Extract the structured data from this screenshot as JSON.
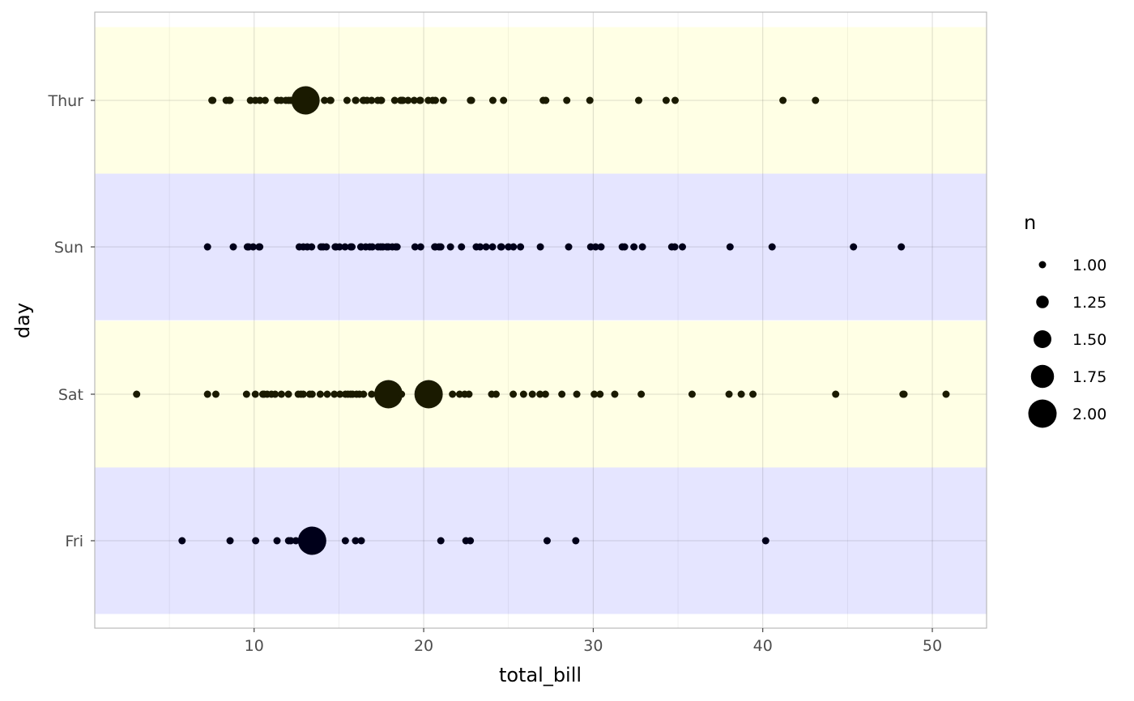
{
  "chart_data": {
    "type": "scatter",
    "xlabel": "total_bill",
    "ylabel": "day",
    "categories": [
      "Fri",
      "Sat",
      "Sun",
      "Thur"
    ],
    "xlim": [
      0.6,
      53.2
    ],
    "xticks": [
      10,
      20,
      30,
      40,
      50
    ],
    "grid": true,
    "legend": {
      "title": "n",
      "position": "right",
      "entries": [
        "1.00",
        "1.25",
        "1.50",
        "1.75",
        "2.00"
      ]
    },
    "band_colors": {
      "Thur": "#ffffe5",
      "Sun": "#e5e5ff",
      "Sat": "#ffffe5",
      "Fri": "#e5e5ff"
    },
    "series": [
      {
        "day": "Thur",
        "color": "#1a1a00",
        "points": [
          {
            "x": 7.51,
            "n": 1
          },
          {
            "x": 7.56,
            "n": 1
          },
          {
            "x": 8.35,
            "n": 1
          },
          {
            "x": 8.52,
            "n": 1
          },
          {
            "x": 8.58,
            "n": 1
          },
          {
            "x": 9.78,
            "n": 1
          },
          {
            "x": 10.07,
            "n": 1
          },
          {
            "x": 10.34,
            "n": 1
          },
          {
            "x": 10.65,
            "n": 1
          },
          {
            "x": 11.38,
            "n": 1
          },
          {
            "x": 11.59,
            "n": 1
          },
          {
            "x": 11.87,
            "n": 1
          },
          {
            "x": 12.03,
            "n": 1
          },
          {
            "x": 12.16,
            "n": 1
          },
          {
            "x": 12.43,
            "n": 1
          },
          {
            "x": 12.48,
            "n": 1
          },
          {
            "x": 12.74,
            "n": 1
          },
          {
            "x": 13.03,
            "n": 2
          },
          {
            "x": 13.42,
            "n": 1
          },
          {
            "x": 13.51,
            "n": 1
          },
          {
            "x": 14.15,
            "n": 1
          },
          {
            "x": 14.48,
            "n": 1
          },
          {
            "x": 14.52,
            "n": 1
          },
          {
            "x": 15.48,
            "n": 1
          },
          {
            "x": 15.98,
            "n": 1
          },
          {
            "x": 16.0,
            "n": 1
          },
          {
            "x": 16.43,
            "n": 1
          },
          {
            "x": 16.47,
            "n": 1
          },
          {
            "x": 16.66,
            "n": 1
          },
          {
            "x": 16.93,
            "n": 1
          },
          {
            "x": 17.29,
            "n": 1
          },
          {
            "x": 17.47,
            "n": 1
          },
          {
            "x": 17.51,
            "n": 1
          },
          {
            "x": 18.29,
            "n": 1
          },
          {
            "x": 18.64,
            "n": 1
          },
          {
            "x": 18.71,
            "n": 1
          },
          {
            "x": 18.78,
            "n": 1
          },
          {
            "x": 19.08,
            "n": 1
          },
          {
            "x": 19.44,
            "n": 1
          },
          {
            "x": 19.77,
            "n": 1
          },
          {
            "x": 19.81,
            "n": 1
          },
          {
            "x": 20.27,
            "n": 1
          },
          {
            "x": 20.53,
            "n": 1
          },
          {
            "x": 20.69,
            "n": 1
          },
          {
            "x": 21.16,
            "n": 1
          },
          {
            "x": 22.76,
            "n": 1
          },
          {
            "x": 22.82,
            "n": 1
          },
          {
            "x": 24.08,
            "n": 1
          },
          {
            "x": 24.71,
            "n": 1
          },
          {
            "x": 27.05,
            "n": 1
          },
          {
            "x": 27.2,
            "n": 1
          },
          {
            "x": 28.44,
            "n": 1
          },
          {
            "x": 29.8,
            "n": 1
          },
          {
            "x": 32.68,
            "n": 1
          },
          {
            "x": 34.3,
            "n": 1
          },
          {
            "x": 34.83,
            "n": 1
          },
          {
            "x": 41.19,
            "n": 1
          },
          {
            "x": 43.11,
            "n": 1
          }
        ]
      },
      {
        "day": "Sun",
        "color": "#00001a",
        "points": [
          {
            "x": 7.25,
            "n": 1
          },
          {
            "x": 8.77,
            "n": 1
          },
          {
            "x": 9.6,
            "n": 1
          },
          {
            "x": 9.68,
            "n": 1
          },
          {
            "x": 9.94,
            "n": 1
          },
          {
            "x": 10.29,
            "n": 1
          },
          {
            "x": 10.33,
            "n": 1
          },
          {
            "x": 12.66,
            "n": 1
          },
          {
            "x": 12.9,
            "n": 1
          },
          {
            "x": 13.13,
            "n": 1
          },
          {
            "x": 13.39,
            "n": 1
          },
          {
            "x": 13.94,
            "n": 1
          },
          {
            "x": 14.07,
            "n": 1
          },
          {
            "x": 14.26,
            "n": 1
          },
          {
            "x": 14.78,
            "n": 1
          },
          {
            "x": 14.83,
            "n": 1
          },
          {
            "x": 15.04,
            "n": 1
          },
          {
            "x": 15.36,
            "n": 1
          },
          {
            "x": 15.69,
            "n": 1
          },
          {
            "x": 15.77,
            "n": 1
          },
          {
            "x": 16.29,
            "n": 1
          },
          {
            "x": 16.31,
            "n": 1
          },
          {
            "x": 16.58,
            "n": 1
          },
          {
            "x": 16.82,
            "n": 1
          },
          {
            "x": 16.97,
            "n": 1
          },
          {
            "x": 17.31,
            "n": 1
          },
          {
            "x": 17.46,
            "n": 1
          },
          {
            "x": 17.59,
            "n": 1
          },
          {
            "x": 17.82,
            "n": 1
          },
          {
            "x": 17.92,
            "n": 1
          },
          {
            "x": 18.15,
            "n": 1
          },
          {
            "x": 18.35,
            "n": 1
          },
          {
            "x": 18.43,
            "n": 1
          },
          {
            "x": 19.49,
            "n": 1
          },
          {
            "x": 19.82,
            "n": 1
          },
          {
            "x": 20.65,
            "n": 1
          },
          {
            "x": 20.69,
            "n": 1
          },
          {
            "x": 20.9,
            "n": 1
          },
          {
            "x": 21.01,
            "n": 1
          },
          {
            "x": 21.58,
            "n": 1
          },
          {
            "x": 22.23,
            "n": 1
          },
          {
            "x": 23.1,
            "n": 1
          },
          {
            "x": 23.33,
            "n": 1
          },
          {
            "x": 23.68,
            "n": 1
          },
          {
            "x": 24.06,
            "n": 1
          },
          {
            "x": 24.55,
            "n": 1
          },
          {
            "x": 24.59,
            "n": 1
          },
          {
            "x": 25.0,
            "n": 1
          },
          {
            "x": 25.29,
            "n": 1
          },
          {
            "x": 25.71,
            "n": 1
          },
          {
            "x": 26.88,
            "n": 1
          },
          {
            "x": 28.55,
            "n": 1
          },
          {
            "x": 29.85,
            "n": 1
          },
          {
            "x": 30.14,
            "n": 1
          },
          {
            "x": 30.46,
            "n": 1
          },
          {
            "x": 31.71,
            "n": 1
          },
          {
            "x": 31.85,
            "n": 1
          },
          {
            "x": 32.4,
            "n": 1
          },
          {
            "x": 32.9,
            "n": 1
          },
          {
            "x": 34.63,
            "n": 1
          },
          {
            "x": 34.81,
            "n": 1
          },
          {
            "x": 35.26,
            "n": 1
          },
          {
            "x": 38.07,
            "n": 1
          },
          {
            "x": 40.55,
            "n": 1
          },
          {
            "x": 45.35,
            "n": 1
          },
          {
            "x": 48.17,
            "n": 1
          }
        ]
      },
      {
        "day": "Sat",
        "color": "#1a1a00",
        "points": [
          {
            "x": 3.07,
            "n": 1
          },
          {
            "x": 7.25,
            "n": 1
          },
          {
            "x": 7.74,
            "n": 1
          },
          {
            "x": 9.55,
            "n": 1
          },
          {
            "x": 10.07,
            "n": 1
          },
          {
            "x": 10.51,
            "n": 1
          },
          {
            "x": 10.59,
            "n": 1
          },
          {
            "x": 10.77,
            "n": 1
          },
          {
            "x": 11.02,
            "n": 1
          },
          {
            "x": 11.24,
            "n": 1
          },
          {
            "x": 11.61,
            "n": 1
          },
          {
            "x": 12.02,
            "n": 1
          },
          {
            "x": 12.6,
            "n": 1
          },
          {
            "x": 12.76,
            "n": 1
          },
          {
            "x": 12.9,
            "n": 1
          },
          {
            "x": 13.28,
            "n": 1
          },
          {
            "x": 13.42,
            "n": 1
          },
          {
            "x": 13.9,
            "n": 1
          },
          {
            "x": 14.31,
            "n": 1
          },
          {
            "x": 14.73,
            "n": 1
          },
          {
            "x": 15.06,
            "n": 1
          },
          {
            "x": 15.38,
            "n": 1
          },
          {
            "x": 15.53,
            "n": 1
          },
          {
            "x": 15.69,
            "n": 1
          },
          {
            "x": 15.81,
            "n": 1
          },
          {
            "x": 16.04,
            "n": 1
          },
          {
            "x": 16.21,
            "n": 1
          },
          {
            "x": 16.45,
            "n": 1
          },
          {
            "x": 16.93,
            "n": 1
          },
          {
            "x": 17.92,
            "n": 2
          },
          {
            "x": 18.69,
            "n": 1
          },
          {
            "x": 20.29,
            "n": 2
          },
          {
            "x": 21.7,
            "n": 1
          },
          {
            "x": 22.12,
            "n": 1
          },
          {
            "x": 22.42,
            "n": 1
          },
          {
            "x": 22.67,
            "n": 1
          },
          {
            "x": 24.01,
            "n": 1
          },
          {
            "x": 24.27,
            "n": 1
          },
          {
            "x": 25.28,
            "n": 1
          },
          {
            "x": 25.89,
            "n": 1
          },
          {
            "x": 26.41,
            "n": 1
          },
          {
            "x": 26.86,
            "n": 1
          },
          {
            "x": 27.18,
            "n": 1
          },
          {
            "x": 28.15,
            "n": 1
          },
          {
            "x": 29.03,
            "n": 1
          },
          {
            "x": 30.06,
            "n": 1
          },
          {
            "x": 30.4,
            "n": 1
          },
          {
            "x": 31.27,
            "n": 1
          },
          {
            "x": 32.83,
            "n": 1
          },
          {
            "x": 35.83,
            "n": 1
          },
          {
            "x": 38.01,
            "n": 1
          },
          {
            "x": 38.73,
            "n": 1
          },
          {
            "x": 39.42,
            "n": 1
          },
          {
            "x": 44.3,
            "n": 1
          },
          {
            "x": 48.27,
            "n": 1
          },
          {
            "x": 48.33,
            "n": 1
          },
          {
            "x": 50.81,
            "n": 1
          }
        ]
      },
      {
        "day": "Fri",
        "color": "#00001a",
        "points": [
          {
            "x": 5.75,
            "n": 1
          },
          {
            "x": 8.58,
            "n": 1
          },
          {
            "x": 10.09,
            "n": 1
          },
          {
            "x": 11.35,
            "n": 1
          },
          {
            "x": 12.03,
            "n": 1
          },
          {
            "x": 12.16,
            "n": 1
          },
          {
            "x": 12.46,
            "n": 1
          },
          {
            "x": 13.42,
            "n": 2
          },
          {
            "x": 15.38,
            "n": 1
          },
          {
            "x": 15.98,
            "n": 1
          },
          {
            "x": 16.32,
            "n": 1
          },
          {
            "x": 21.01,
            "n": 1
          },
          {
            "x": 22.49,
            "n": 1
          },
          {
            "x": 22.75,
            "n": 1
          },
          {
            "x": 27.28,
            "n": 1
          },
          {
            "x": 28.97,
            "n": 1
          },
          {
            "x": 40.17,
            "n": 1
          }
        ]
      }
    ]
  }
}
